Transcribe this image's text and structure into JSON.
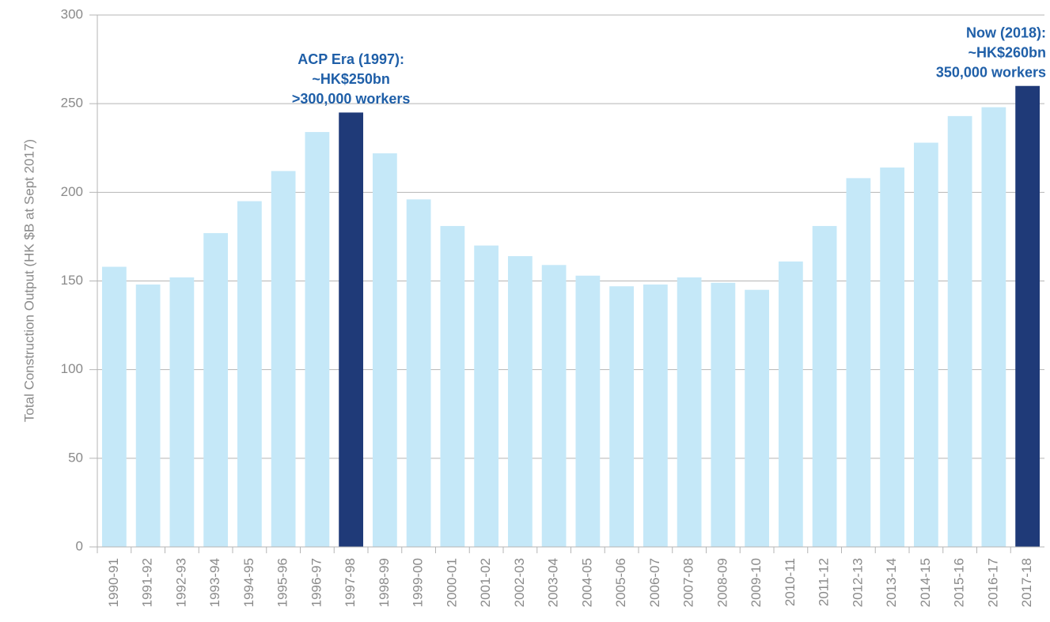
{
  "chart_data": {
    "type": "bar",
    "y_label": "Total Construction Output (HK $B at Sept 2017)",
    "categories": [
      "1990-91",
      "1991-92",
      "1992-93",
      "1993-94",
      "1994-95",
      "1995-96",
      "1996-97",
      "1997-98",
      "1998-99",
      "1999-00",
      "2000-01",
      "2001-02",
      "2002-03",
      "2003-04",
      "2004-05",
      "2005-06",
      "2006-07",
      "2007-08",
      "2008-09",
      "2009-10",
      "2010-11",
      "2011-12",
      "2012-13",
      "2013-14",
      "2014-15",
      "2015-16",
      "2016-17",
      "2017-18"
    ],
    "values": [
      158,
      148,
      152,
      177,
      195,
      212,
      234,
      245,
      222,
      196,
      181,
      170,
      164,
      159,
      153,
      147,
      148,
      152,
      149,
      145,
      161,
      181,
      208,
      214,
      228,
      243,
      248,
      260
    ],
    "colors": [
      "#c5e8f8",
      "#c5e8f8",
      "#c5e8f8",
      "#c5e8f8",
      "#c5e8f8",
      "#c5e8f8",
      "#c5e8f8",
      "#1f3a78",
      "#c5e8f8",
      "#c5e8f8",
      "#c5e8f8",
      "#c5e8f8",
      "#c5e8f8",
      "#c5e8f8",
      "#c5e8f8",
      "#c5e8f8",
      "#c5e8f8",
      "#c5e8f8",
      "#c5e8f8",
      "#c5e8f8",
      "#c5e8f8",
      "#c5e8f8",
      "#c5e8f8",
      "#c5e8f8",
      "#c5e8f8",
      "#c5e8f8",
      "#c5e8f8",
      "#1f3a78"
    ],
    "ylim": [
      0,
      300
    ],
    "yticks": [
      0,
      50,
      100,
      150,
      200,
      250,
      300
    ],
    "grid": true,
    "annotations": [
      {
        "anchor": "1997-98",
        "lines": [
          "ACP Era (1997):",
          "~HK$250bn",
          ">300,000 workers"
        ]
      },
      {
        "anchor": "2017-18",
        "lines": [
          "Now (2018):",
          "~HK$260bn",
          "350,000 workers"
        ]
      }
    ]
  }
}
